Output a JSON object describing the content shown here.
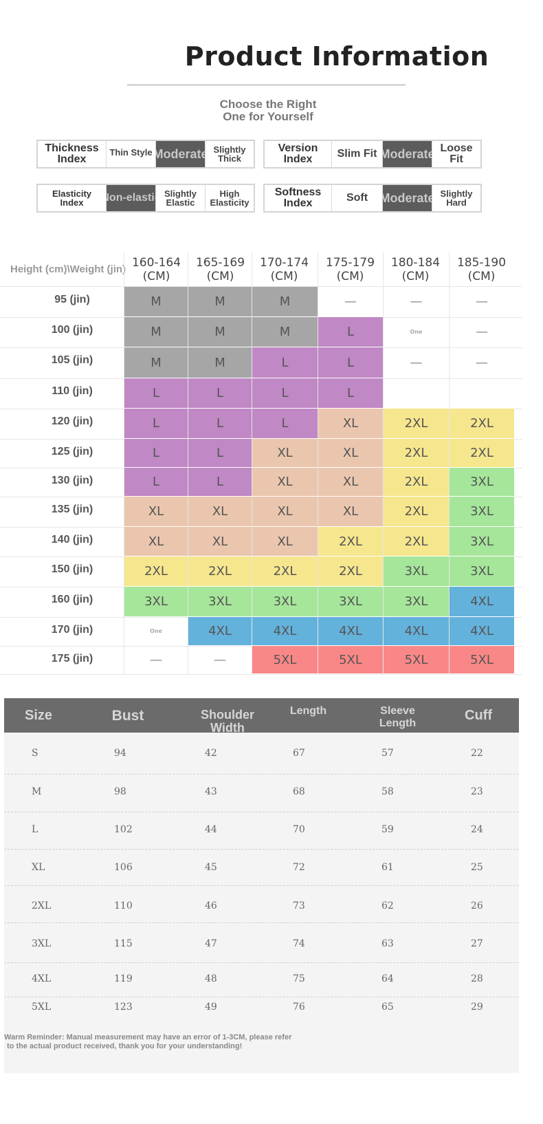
{
  "title": "Product Information",
  "subtitle": [
    "Choose the Right",
    "One for Yourself"
  ],
  "indices": {
    "thickness": {
      "label": [
        "Thickness",
        "Index"
      ],
      "options": [
        "Thin Style",
        "Moderate",
        "Slightly Thick"
      ]
    },
    "version": {
      "label": [
        "Version",
        "Index"
      ],
      "options": [
        "Slim Fit",
        "Moderate",
        "Loose Fit"
      ]
    },
    "elasticity": {
      "label": [
        "Elasticity",
        "Index"
      ],
      "options": [
        "Non-elastic",
        "Slightly Elastic",
        "High Elasticity"
      ]
    },
    "softness": {
      "label": [
        "Softness",
        "Index"
      ],
      "options": [
        "Soft",
        "Moderate",
        "Slightly Hard"
      ]
    }
  },
  "size_chart": {
    "corner_label": "Height (cm)\\Weight (jin)",
    "columns": [
      "160-164",
      "165-169",
      "170-174",
      "175-179",
      "180-184",
      "185-190"
    ],
    "column_unit": "(CM)",
    "rows": [
      {
        "label": "95 (jin)",
        "cells": [
          "M",
          "M",
          "M",
          "—",
          "—",
          "—"
        ]
      },
      {
        "label": "100 (jin)",
        "cells": [
          "M",
          "M",
          "M",
          "L",
          "One",
          "—"
        ]
      },
      {
        "label": "105 (jin)",
        "cells": [
          "M",
          "M",
          "L",
          "L",
          "—",
          "—"
        ]
      },
      {
        "label": "110 (jin)",
        "cells": [
          "L",
          "L",
          "L",
          "L",
          "",
          ""
        ]
      },
      {
        "label": "120 (jin)",
        "cells": [
          "L",
          "L",
          "L",
          "XL",
          "2XL",
          "2XL"
        ]
      },
      {
        "label": "125 (jin)",
        "cells": [
          "L",
          "L",
          "XL",
          "XL",
          "2XL",
          "2XL"
        ]
      },
      {
        "label": "130 (jin)",
        "cells": [
          "L",
          "L",
          "XL",
          "XL",
          "2XL",
          "3XL"
        ]
      },
      {
        "label": "135 (jin)",
        "cells": [
          "XL",
          "XL",
          "XL",
          "XL",
          "2XL",
          "3XL"
        ]
      },
      {
        "label": "140 (jin)",
        "cells": [
          "XL",
          "XL",
          "XL",
          "2XL",
          "2XL",
          "3XL"
        ]
      },
      {
        "label": "150 (jin)",
        "cells": [
          "2XL",
          "2XL",
          "2XL",
          "2XL",
          "3XL",
          "3XL"
        ]
      },
      {
        "label": "160 (jin)",
        "cells": [
          "3XL",
          "3XL",
          "3XL",
          "3XL",
          "3XL",
          "4XL"
        ]
      },
      {
        "label": "170 (jin)",
        "cells": [
          "One",
          "4XL",
          "4XL",
          "4XL",
          "4XL",
          "4XL"
        ]
      },
      {
        "label": "175 (jin)",
        "cells": [
          "—",
          "—",
          "5XL",
          "5XL",
          "5XL",
          "5XL"
        ]
      }
    ],
    "colors": {
      "M": "#a6a6a6",
      "L": "#c088c4",
      "XL": "#ebc6ae",
      "2XL": "#f6e68e",
      "3XL": "#a5e69a",
      "4XL": "#63b2dc",
      "5XL": "#fa8787"
    }
  },
  "measurements": {
    "headers": [
      "Size",
      "Bust",
      "Shoulder Width",
      "Length",
      "Sleeve Length",
      "Cuff"
    ],
    "rows": [
      [
        "S",
        "94",
        "42",
        "67",
        "57",
        "22"
      ],
      [
        "M",
        "98",
        "43",
        "68",
        "58",
        "23"
      ],
      [
        "L",
        "102",
        "44",
        "70",
        "59",
        "24"
      ],
      [
        "XL",
        "106",
        "45",
        "72",
        "61",
        "25"
      ],
      [
        "2XL",
        "110",
        "46",
        "73",
        "62",
        "26"
      ],
      [
        "3XL",
        "115",
        "47",
        "74",
        "63",
        "27"
      ],
      [
        "4XL",
        "119",
        "48",
        "75",
        "64",
        "28"
      ],
      [
        "5XL",
        "123",
        "49",
        "76",
        "65",
        "29"
      ]
    ]
  },
  "reminder": [
    "Warm Reminder: Manual measurement may have an error of 1-3CM, please refer",
    "to the actual product received, thank you for your understanding!"
  ]
}
